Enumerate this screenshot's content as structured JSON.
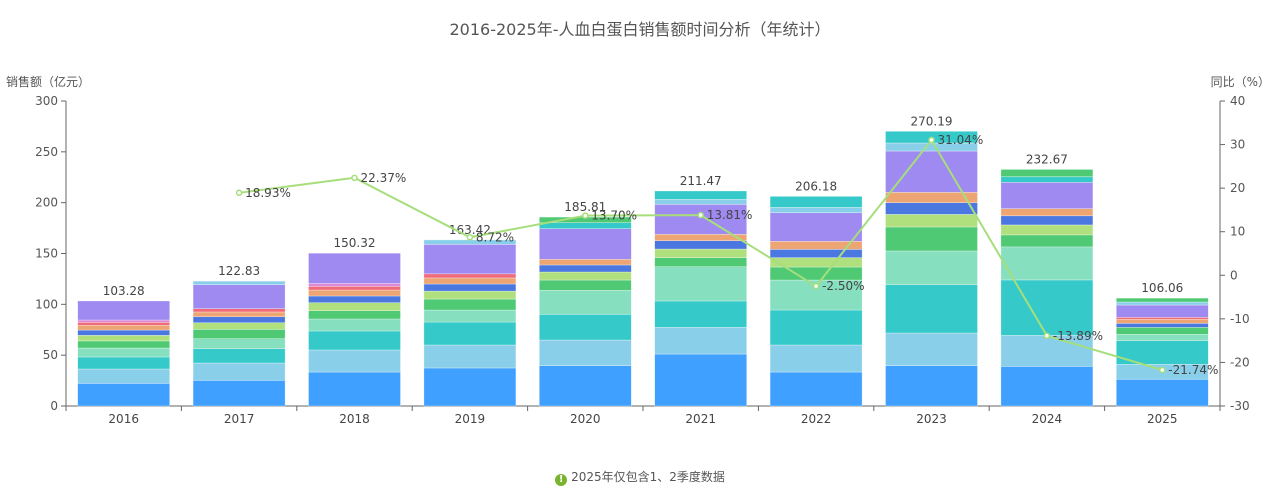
{
  "chart_data": {
    "type": "bar",
    "stacked": true,
    "title": "2016-2025年-人血白蛋白销售额时间分析（年统计）",
    "ylabel": "销售额（亿元）",
    "y2label": "同比（%）",
    "ylim": [
      0,
      300
    ],
    "y2lim": [
      -30,
      40
    ],
    "yticks": [
      0,
      50,
      100,
      150,
      200,
      250,
      300
    ],
    "y2ticks": [
      -30,
      -20,
      -10,
      0,
      10,
      20,
      30,
      40
    ],
    "grid": false,
    "categories": [
      "2016",
      "2017",
      "2018",
      "2019",
      "2020",
      "2021",
      "2022",
      "2023",
      "2024",
      "2025"
    ],
    "totals": [
      "103.28",
      "122.83",
      "150.32",
      "163.42",
      "185.81",
      "211.47",
      "206.18",
      "270.19",
      "232.67",
      "106.06"
    ],
    "series": [
      {
        "color": "#3fa0ff",
        "values": [
          22.3,
          25.3,
          33.4,
          37.4,
          39.7,
          51.1,
          33.4,
          39.7,
          39.0,
          26.3
        ]
      },
      {
        "color": "#8acfe9",
        "values": [
          14.1,
          17.0,
          21.7,
          22.6,
          25.2,
          26.3,
          26.6,
          32.1,
          30.5,
          14.7
        ]
      },
      {
        "color": "#35c9ca",
        "values": [
          11.8,
          14.1,
          18.7,
          22.6,
          25.3,
          25.9,
          34.4,
          47.5,
          54.5,
          23.2
        ]
      },
      {
        "color": "#86dfbf",
        "values": [
          8.8,
          9.8,
          11.8,
          11.8,
          23.6,
          33.7,
          29.5,
          33.2,
          32.5,
          6.3
        ]
      },
      {
        "color": "#4fc974",
        "values": [
          7.0,
          9.2,
          8.2,
          10.8,
          10.1,
          8.9,
          12.8,
          23.6,
          11.8,
          6.9
        ]
      },
      {
        "color": "#b0e07e",
        "values": [
          5.5,
          6.5,
          7.8,
          7.8,
          7.9,
          8.5,
          9.2,
          12.4,
          9.8,
          0
        ]
      },
      {
        "color": "#4a78e0",
        "values": [
          5.2,
          5.9,
          6.6,
          7.0,
          6.9,
          8.2,
          8.2,
          11.5,
          9.0,
          3.9
        ]
      },
      {
        "color": "#eda574",
        "values": [
          4.7,
          4.7,
          5.9,
          6.0,
          5.6,
          6.3,
          7.9,
          10.2,
          7.0,
          4.0
        ]
      },
      {
        "color": "#f06a7a",
        "values": [
          2.9,
          3.2,
          3.6,
          4.0,
          0,
          0,
          0,
          0,
          0,
          1.9
        ]
      },
      {
        "color": "#d98ad9",
        "values": [
          2.3,
          0,
          3.0,
          0,
          0,
          0,
          0,
          0,
          0,
          0
        ]
      },
      {
        "color": "#9e8af0",
        "values": [
          18.7,
          23.6,
          29.6,
          29.0,
          30.1,
          29.5,
          28.1,
          40.6,
          25.9,
          12.1
        ]
      },
      {
        "color": "#8acfe9",
        "values": [
          0,
          3.5,
          0,
          4.4,
          0,
          4.9,
          5.3,
          7.9,
          0,
          3.0
        ]
      },
      {
        "color": "#35c9ca",
        "values": [
          0,
          0,
          0,
          0,
          5.9,
          8.2,
          10.8,
          11.5,
          5.5,
          0
        ]
      },
      {
        "color": "#4fc974",
        "values": [
          0,
          0,
          0,
          0,
          5.5,
          0,
          0,
          0,
          7.2,
          3.8
        ]
      }
    ],
    "line": {
      "axis": "right",
      "color": "#a6de7c",
      "values": [
        null,
        18.93,
        22.37,
        8.72,
        13.7,
        13.81,
        -2.5,
        31.04,
        -13.89,
        -21.74
      ],
      "labels": [
        "",
        "18.93%",
        "22.37%",
        "8.72%",
        "13.70%",
        "13.81%",
        "-2.50%",
        "31.04%",
        "-13.89%",
        "-21.74%"
      ]
    }
  },
  "footer": {
    "icon": "info-icon",
    "icon_glyph": "!",
    "text": "2025年仅包含1、2季度数据"
  }
}
